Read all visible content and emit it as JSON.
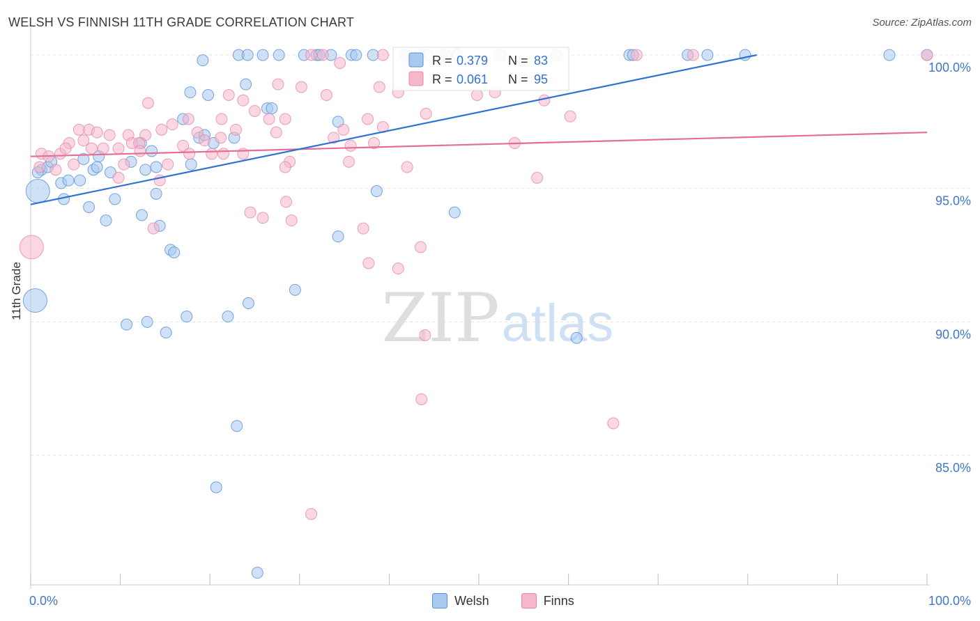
{
  "title": "WELSH VS FINNISH 11TH GRADE CORRELATION CHART",
  "source": "Source: ZipAtlas.com",
  "watermark": {
    "zip": "ZIP",
    "atlas": "atlas"
  },
  "colors": {
    "welsh_fill": "#a8c8f0",
    "welsh_stroke": "#5a8fd6",
    "welsh_line": "#2f72d2",
    "finns_fill": "#f6b7ca",
    "finns_stroke": "#e389a8",
    "finns_line": "#e46e97",
    "tick_label": "#3f78c8",
    "grid": "#e3e3e3"
  },
  "legend_top": [
    {
      "r_label": "R =",
      "r_value": "0.379",
      "n_label": "N =",
      "n_value": "83"
    },
    {
      "r_label": "R =",
      "r_value": "0.061",
      "n_label": "N =",
      "n_value": "95"
    }
  ],
  "chart_data": {
    "type": "scatter",
    "title": "WELSH VS FINNISH 11TH GRADE CORRELATION CHART",
    "xlabel": "",
    "ylabel": "11th Grade",
    "xlim": [
      0,
      100
    ],
    "ylim": [
      80.3,
      100.7
    ],
    "x_tick_labels": [
      "0.0%",
      "100.0%"
    ],
    "y_ticks": [
      85,
      90,
      95,
      100
    ],
    "y_tick_labels": [
      "85.0%",
      "90.0%",
      "95.0%",
      "100.0%"
    ],
    "grid": true,
    "legend_position": "bottom-center",
    "series": [
      {
        "name": "Welsh",
        "trend": {
          "x": [
            0,
            81
          ],
          "y": [
            94.4,
            100.0
          ]
        },
        "points": [
          {
            "x": 19.2,
            "y": 99.8
          },
          {
            "x": 23.2,
            "y": 100
          },
          {
            "x": 24.2,
            "y": 100
          },
          {
            "x": 25.9,
            "y": 100
          },
          {
            "x": 27.7,
            "y": 100
          },
          {
            "x": 30.5,
            "y": 100
          },
          {
            "x": 31.9,
            "y": 100
          },
          {
            "x": 32.2,
            "y": 100
          },
          {
            "x": 33.5,
            "y": 100
          },
          {
            "x": 35.8,
            "y": 100
          },
          {
            "x": 36.3,
            "y": 100
          },
          {
            "x": 38.2,
            "y": 100
          },
          {
            "x": 41.8,
            "y": 100
          },
          {
            "x": 43.4,
            "y": 100
          },
          {
            "x": 44.3,
            "y": 100
          },
          {
            "x": 46.3,
            "y": 100
          },
          {
            "x": 47.6,
            "y": 100
          },
          {
            "x": 52.4,
            "y": 100
          },
          {
            "x": 58.6,
            "y": 100
          },
          {
            "x": 66.8,
            "y": 100
          },
          {
            "x": 67.2,
            "y": 100
          },
          {
            "x": 73.3,
            "y": 100
          },
          {
            "x": 75.5,
            "y": 100
          },
          {
            "x": 79.7,
            "y": 100
          },
          {
            "x": 95.8,
            "y": 100
          },
          {
            "x": 100,
            "y": 100
          },
          {
            "x": 42.9,
            "y": 99.1
          },
          {
            "x": 24.0,
            "y": 98.9
          },
          {
            "x": 17.8,
            "y": 98.6
          },
          {
            "x": 19.8,
            "y": 98.5
          },
          {
            "x": 26.4,
            "y": 98.0
          },
          {
            "x": 26.9,
            "y": 98.0
          },
          {
            "x": 34.3,
            "y": 97.5
          },
          {
            "x": 17.0,
            "y": 97.6
          },
          {
            "x": 18.8,
            "y": 96.9
          },
          {
            "x": 19.4,
            "y": 97.0
          },
          {
            "x": 20.4,
            "y": 96.7
          },
          {
            "x": 22.7,
            "y": 96.9
          },
          {
            "x": 12.3,
            "y": 96.7
          },
          {
            "x": 13.5,
            "y": 96.4
          },
          {
            "x": 1.2,
            "y": 95.7
          },
          {
            "x": 1.9,
            "y": 95.8
          },
          {
            "x": 2.3,
            "y": 96.0
          },
          {
            "x": 3.4,
            "y": 95.2
          },
          {
            "x": 4.2,
            "y": 95.3
          },
          {
            "x": 5.5,
            "y": 95.3
          },
          {
            "x": 5.9,
            "y": 96.1
          },
          {
            "x": 7.0,
            "y": 95.7
          },
          {
            "x": 7.6,
            "y": 96.2
          },
          {
            "x": 7.4,
            "y": 95.8
          },
          {
            "x": 8.9,
            "y": 95.6
          },
          {
            "x": 11.2,
            "y": 96.0
          },
          {
            "x": 12.8,
            "y": 95.7
          },
          {
            "x": 14.0,
            "y": 95.8
          },
          {
            "x": 17.9,
            "y": 95.9
          },
          {
            "x": 0.8,
            "y": 95.6
          },
          {
            "x": 0.8,
            "y": 94.9,
            "big": true
          },
          {
            "x": 3.7,
            "y": 94.6
          },
          {
            "x": 6.5,
            "y": 94.3
          },
          {
            "x": 9.4,
            "y": 94.6
          },
          {
            "x": 14.0,
            "y": 94.8
          },
          {
            "x": 12.4,
            "y": 94.0
          },
          {
            "x": 8.4,
            "y": 93.8
          },
          {
            "x": 14.4,
            "y": 93.6
          },
          {
            "x": 38.6,
            "y": 94.9
          },
          {
            "x": 47.3,
            "y": 94.1
          },
          {
            "x": 34.3,
            "y": 93.2
          },
          {
            "x": 15.6,
            "y": 92.7
          },
          {
            "x": 16.0,
            "y": 92.6
          },
          {
            "x": 29.5,
            "y": 91.2
          },
          {
            "x": 0.5,
            "y": 90.8,
            "big": true
          },
          {
            "x": 24.3,
            "y": 90.7
          },
          {
            "x": 10.7,
            "y": 89.9
          },
          {
            "x": 13.0,
            "y": 90.0
          },
          {
            "x": 15.1,
            "y": 89.6
          },
          {
            "x": 17.4,
            "y": 90.2
          },
          {
            "x": 22.0,
            "y": 90.2
          },
          {
            "x": 60.9,
            "y": 89.4
          },
          {
            "x": 23.0,
            "y": 86.1
          },
          {
            "x": 20.7,
            "y": 83.8
          },
          {
            "x": 25.3,
            "y": 80.6
          }
        ]
      },
      {
        "name": "Finns",
        "trend": {
          "x": [
            0,
            100
          ],
          "y": [
            96.2,
            97.1
          ]
        },
        "points": [
          {
            "x": 31.3,
            "y": 100
          },
          {
            "x": 32.6,
            "y": 100
          },
          {
            "x": 39.3,
            "y": 100
          },
          {
            "x": 45.8,
            "y": 100
          },
          {
            "x": 58.7,
            "y": 100
          },
          {
            "x": 67.6,
            "y": 100
          },
          {
            "x": 73.9,
            "y": 100
          },
          {
            "x": 100,
            "y": 100
          },
          {
            "x": 34.5,
            "y": 99.7
          },
          {
            "x": 27.6,
            "y": 98.9
          },
          {
            "x": 30.2,
            "y": 98.8
          },
          {
            "x": 38.9,
            "y": 98.8
          },
          {
            "x": 41.0,
            "y": 98.6
          },
          {
            "x": 49.8,
            "y": 98.5
          },
          {
            "x": 51.8,
            "y": 98.6
          },
          {
            "x": 57.3,
            "y": 98.3
          },
          {
            "x": 22.1,
            "y": 98.5
          },
          {
            "x": 23.7,
            "y": 98.3
          },
          {
            "x": 33.0,
            "y": 98.5
          },
          {
            "x": 13.1,
            "y": 98.2
          },
          {
            "x": 25.0,
            "y": 97.9
          },
          {
            "x": 28.4,
            "y": 97.6
          },
          {
            "x": 26.6,
            "y": 97.6
          },
          {
            "x": 21.3,
            "y": 97.6
          },
          {
            "x": 37.6,
            "y": 97.6
          },
          {
            "x": 44.1,
            "y": 97.8
          },
          {
            "x": 60.2,
            "y": 97.7
          },
          {
            "x": 17.6,
            "y": 97.6
          },
          {
            "x": 15.8,
            "y": 97.4
          },
          {
            "x": 14.6,
            "y": 97.2
          },
          {
            "x": 22.9,
            "y": 97.2
          },
          {
            "x": 27.4,
            "y": 97.1
          },
          {
            "x": 34.9,
            "y": 97.2
          },
          {
            "x": 39.3,
            "y": 97.3
          },
          {
            "x": 5.4,
            "y": 97.2
          },
          {
            "x": 6.5,
            "y": 97.2
          },
          {
            "x": 7.4,
            "y": 97.1
          },
          {
            "x": 8.8,
            "y": 97.0
          },
          {
            "x": 10.9,
            "y": 97.0
          },
          {
            "x": 12.8,
            "y": 97.0
          },
          {
            "x": 18.6,
            "y": 97.1
          },
          {
            "x": 19.4,
            "y": 96.8
          },
          {
            "x": 21.2,
            "y": 96.9
          },
          {
            "x": 33.8,
            "y": 96.9
          },
          {
            "x": 38.3,
            "y": 96.7
          },
          {
            "x": 54.0,
            "y": 96.7
          },
          {
            "x": 4.3,
            "y": 96.7
          },
          {
            "x": 5.9,
            "y": 96.8
          },
          {
            "x": 11.3,
            "y": 96.7
          },
          {
            "x": 12.1,
            "y": 96.7
          },
          {
            "x": 17.0,
            "y": 96.6
          },
          {
            "x": 23.7,
            "y": 96.3
          },
          {
            "x": 35.7,
            "y": 96.6
          },
          {
            "x": 1.2,
            "y": 96.3
          },
          {
            "x": 2.0,
            "y": 96.2
          },
          {
            "x": 3.3,
            "y": 96.3
          },
          {
            "x": 3.9,
            "y": 96.5
          },
          {
            "x": 6.8,
            "y": 96.5
          },
          {
            "x": 8.1,
            "y": 96.5
          },
          {
            "x": 9.8,
            "y": 96.5
          },
          {
            "x": 12.2,
            "y": 96.4
          },
          {
            "x": 17.7,
            "y": 96.3
          },
          {
            "x": 20.2,
            "y": 96.3
          },
          {
            "x": 21.5,
            "y": 96.3
          },
          {
            "x": 28.9,
            "y": 96.0
          },
          {
            "x": 35.5,
            "y": 96.0
          },
          {
            "x": 1.0,
            "y": 95.8
          },
          {
            "x": 2.8,
            "y": 95.7
          },
          {
            "x": 4.8,
            "y": 95.9
          },
          {
            "x": 10.4,
            "y": 95.9
          },
          {
            "x": 15.3,
            "y": 95.9
          },
          {
            "x": 28.4,
            "y": 95.8
          },
          {
            "x": 42.0,
            "y": 95.8
          },
          {
            "x": 9.8,
            "y": 95.4
          },
          {
            "x": 14.4,
            "y": 95.3
          },
          {
            "x": 56.5,
            "y": 95.4
          },
          {
            "x": 28.5,
            "y": 94.5
          },
          {
            "x": 24.5,
            "y": 94.1
          },
          {
            "x": 25.9,
            "y": 93.9
          },
          {
            "x": 29.1,
            "y": 93.8
          },
          {
            "x": 37.1,
            "y": 93.5
          },
          {
            "x": 13.7,
            "y": 93.5
          },
          {
            "x": 0.1,
            "y": 92.8,
            "big": true
          },
          {
            "x": 43.5,
            "y": 92.8
          },
          {
            "x": 37.7,
            "y": 92.2
          },
          {
            "x": 41.0,
            "y": 92.0
          },
          {
            "x": 44.0,
            "y": 89.5
          },
          {
            "x": 43.6,
            "y": 87.1
          },
          {
            "x": 65.0,
            "y": 86.2
          },
          {
            "x": 31.3,
            "y": 82.8
          }
        ]
      }
    ]
  }
}
